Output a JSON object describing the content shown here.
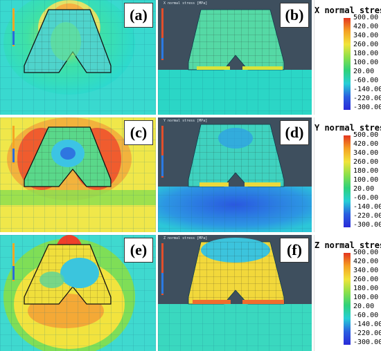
{
  "panels": {
    "a": {
      "label": "(a)"
    },
    "b": {
      "label": "(b)",
      "title": "X normal stress [MPa]"
    },
    "c": {
      "label": "(c)"
    },
    "d": {
      "label": "(d)",
      "title": "Y normal stress [MPa]"
    },
    "e": {
      "label": "(e)"
    },
    "f": {
      "label": "(f)",
      "title": "Z normal stress [MPa]"
    }
  },
  "colorbars": [
    {
      "title": "X normal stress"
    },
    {
      "title": "Y normal stress"
    },
    {
      "title": "Z normal stress"
    }
  ],
  "colorbar_ticks": [
    "500.00",
    "420.00",
    "340.00",
    "260.00",
    "180.00",
    "100.00",
    "20.00",
    "-60.00",
    "-140.00",
    "-220.00",
    "-300.00"
  ],
  "small_ticks": [
    "500.00",
    "420.00",
    "340.00",
    "260.00",
    "180.00",
    "100.00",
    "20.00",
    "-60.00",
    "-140.00",
    "-220.00",
    "-300.00"
  ]
}
